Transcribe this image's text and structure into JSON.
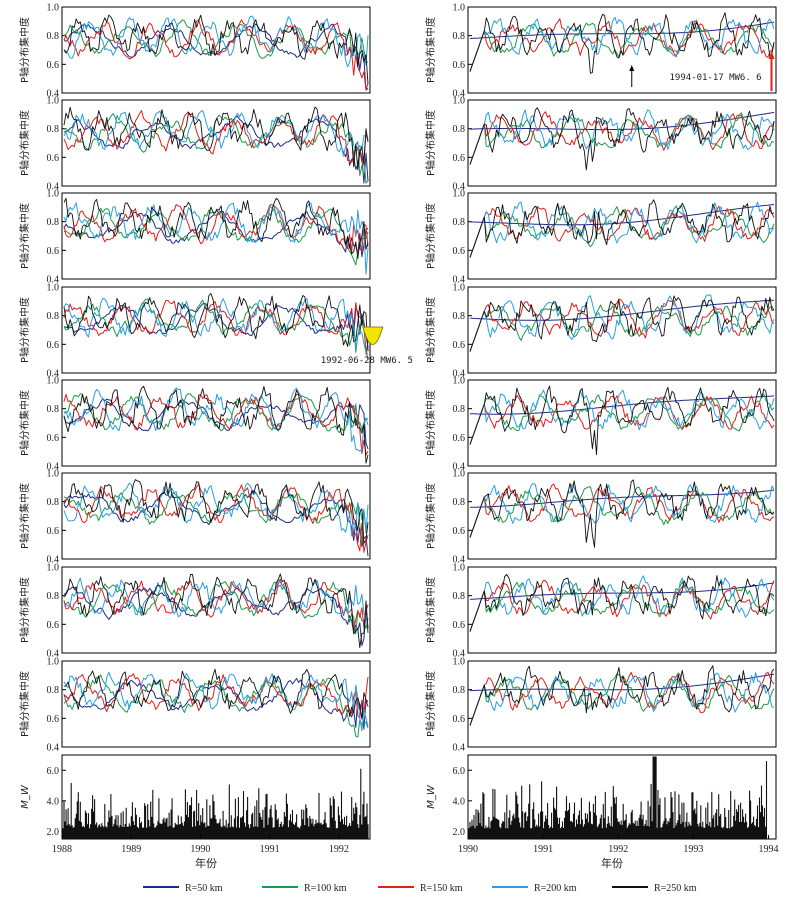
{
  "chart_data": {
    "type": "line",
    "ylabel": "P轴分布集中度",
    "ylabel_mag": "M_W",
    "xlabel": "年份",
    "series_styles": [
      {
        "name": "R=50 km",
        "color": "#1f2a8a"
      },
      {
        "name": "R=100 km",
        "color": "#1f9a4a"
      },
      {
        "name": "R=150 km",
        "color": "#e0201c"
      },
      {
        "name": "R=200 km",
        "color": "#2a9fe0"
      },
      {
        "name": "R=250 km",
        "color": "#111111"
      }
    ],
    "legend_placement": "bottom",
    "columns": [
      {
        "x_range": [
          1988,
          1992.45
        ],
        "x_ticks": [
          "1988",
          "1989",
          "1990",
          "1991",
          "1992"
        ],
        "panel_ylim": [
          0.4,
          1.0
        ],
        "panel_yticks": [
          "0.4",
          "0.6",
          "0.8",
          "1.0"
        ],
        "mag_ylim": [
          1.5,
          7.0
        ],
        "mag_yticks": [
          "2.0",
          "4.0",
          "6.0"
        ],
        "annotation": {
          "panel": 3,
          "text_date": "1992-06-28",
          "text_mw": "M",
          "text_sub": "W",
          "text_val": "6. 5",
          "event_year": 1992.49
        },
        "n_panels": 8
      },
      {
        "x_range": [
          1990,
          1994.1
        ],
        "x_ticks": [
          "1990",
          "1991",
          "1992",
          "1993",
          "1994"
        ],
        "panel_ylim": [
          0.4,
          1.0
        ],
        "panel_yticks": [
          "0.4",
          "0.6",
          "0.8",
          "1.0"
        ],
        "mag_ylim": [
          1.5,
          7.0
        ],
        "mag_yticks": [
          "2.0",
          "4.0",
          "6.0"
        ],
        "annotation": {
          "panel": 0,
          "text_date": "1994-01-17",
          "text_mw": "M",
          "text_sub": "W",
          "text_val": "6. 6",
          "event_year": 1994.04
        },
        "n_panels": 8
      }
    ]
  },
  "legend": {
    "r50": "R=50 km",
    "r100": "R=100 km",
    "r150": "R=150 km",
    "r200": "R=200 km",
    "r250": "R=250 km"
  }
}
